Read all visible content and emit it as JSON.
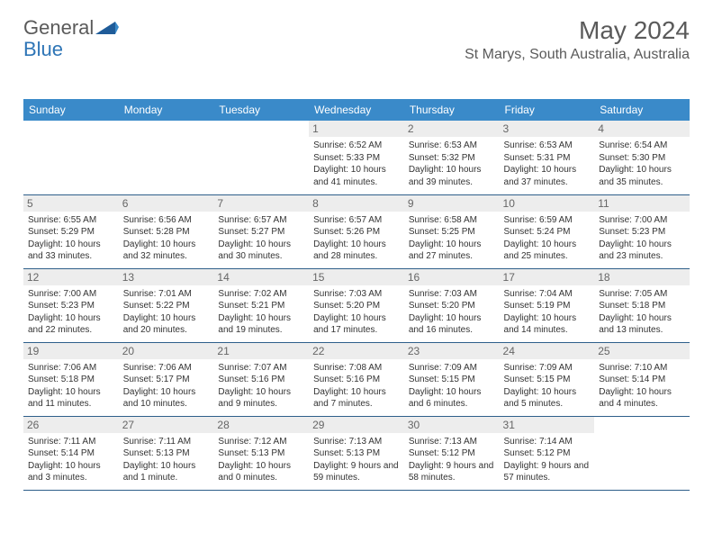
{
  "logo": {
    "text_main": "General",
    "text_blue": "Blue"
  },
  "title": "May 2024",
  "location": "St Marys, South Australia, Australia",
  "colors": {
    "header_bg": "#3a8ac9",
    "header_text": "#ffffff",
    "border": "#2e5f8a",
    "daynum_bg": "#ededed",
    "daynum_text": "#666666",
    "body_text": "#333333",
    "title_text": "#5a5a5a",
    "logo_blue": "#2e75b6"
  },
  "typography": {
    "month_title_fontsize": 28,
    "location_fontsize": 16,
    "weekday_fontsize": 12,
    "daynum_fontsize": 12,
    "cell_fontsize": 10
  },
  "weekdays": [
    "Sunday",
    "Monday",
    "Tuesday",
    "Wednesday",
    "Thursday",
    "Friday",
    "Saturday"
  ],
  "weeks": [
    [
      null,
      null,
      null,
      {
        "n": "1",
        "sr": "6:52 AM",
        "ss": "5:33 PM",
        "dl": "10 hours and 41 minutes."
      },
      {
        "n": "2",
        "sr": "6:53 AM",
        "ss": "5:32 PM",
        "dl": "10 hours and 39 minutes."
      },
      {
        "n": "3",
        "sr": "6:53 AM",
        "ss": "5:31 PM",
        "dl": "10 hours and 37 minutes."
      },
      {
        "n": "4",
        "sr": "6:54 AM",
        "ss": "5:30 PM",
        "dl": "10 hours and 35 minutes."
      }
    ],
    [
      {
        "n": "5",
        "sr": "6:55 AM",
        "ss": "5:29 PM",
        "dl": "10 hours and 33 minutes."
      },
      {
        "n": "6",
        "sr": "6:56 AM",
        "ss": "5:28 PM",
        "dl": "10 hours and 32 minutes."
      },
      {
        "n": "7",
        "sr": "6:57 AM",
        "ss": "5:27 PM",
        "dl": "10 hours and 30 minutes."
      },
      {
        "n": "8",
        "sr": "6:57 AM",
        "ss": "5:26 PM",
        "dl": "10 hours and 28 minutes."
      },
      {
        "n": "9",
        "sr": "6:58 AM",
        "ss": "5:25 PM",
        "dl": "10 hours and 27 minutes."
      },
      {
        "n": "10",
        "sr": "6:59 AM",
        "ss": "5:24 PM",
        "dl": "10 hours and 25 minutes."
      },
      {
        "n": "11",
        "sr": "7:00 AM",
        "ss": "5:23 PM",
        "dl": "10 hours and 23 minutes."
      }
    ],
    [
      {
        "n": "12",
        "sr": "7:00 AM",
        "ss": "5:23 PM",
        "dl": "10 hours and 22 minutes."
      },
      {
        "n": "13",
        "sr": "7:01 AM",
        "ss": "5:22 PM",
        "dl": "10 hours and 20 minutes."
      },
      {
        "n": "14",
        "sr": "7:02 AM",
        "ss": "5:21 PM",
        "dl": "10 hours and 19 minutes."
      },
      {
        "n": "15",
        "sr": "7:03 AM",
        "ss": "5:20 PM",
        "dl": "10 hours and 17 minutes."
      },
      {
        "n": "16",
        "sr": "7:03 AM",
        "ss": "5:20 PM",
        "dl": "10 hours and 16 minutes."
      },
      {
        "n": "17",
        "sr": "7:04 AM",
        "ss": "5:19 PM",
        "dl": "10 hours and 14 minutes."
      },
      {
        "n": "18",
        "sr": "7:05 AM",
        "ss": "5:18 PM",
        "dl": "10 hours and 13 minutes."
      }
    ],
    [
      {
        "n": "19",
        "sr": "7:06 AM",
        "ss": "5:18 PM",
        "dl": "10 hours and 11 minutes."
      },
      {
        "n": "20",
        "sr": "7:06 AM",
        "ss": "5:17 PM",
        "dl": "10 hours and 10 minutes."
      },
      {
        "n": "21",
        "sr": "7:07 AM",
        "ss": "5:16 PM",
        "dl": "10 hours and 9 minutes."
      },
      {
        "n": "22",
        "sr": "7:08 AM",
        "ss": "5:16 PM",
        "dl": "10 hours and 7 minutes."
      },
      {
        "n": "23",
        "sr": "7:09 AM",
        "ss": "5:15 PM",
        "dl": "10 hours and 6 minutes."
      },
      {
        "n": "24",
        "sr": "7:09 AM",
        "ss": "5:15 PM",
        "dl": "10 hours and 5 minutes."
      },
      {
        "n": "25",
        "sr": "7:10 AM",
        "ss": "5:14 PM",
        "dl": "10 hours and 4 minutes."
      }
    ],
    [
      {
        "n": "26",
        "sr": "7:11 AM",
        "ss": "5:14 PM",
        "dl": "10 hours and 3 minutes."
      },
      {
        "n": "27",
        "sr": "7:11 AM",
        "ss": "5:13 PM",
        "dl": "10 hours and 1 minute."
      },
      {
        "n": "28",
        "sr": "7:12 AM",
        "ss": "5:13 PM",
        "dl": "10 hours and 0 minutes."
      },
      {
        "n": "29",
        "sr": "7:13 AM",
        "ss": "5:13 PM",
        "dl": "9 hours and 59 minutes."
      },
      {
        "n": "30",
        "sr": "7:13 AM",
        "ss": "5:12 PM",
        "dl": "9 hours and 58 minutes."
      },
      {
        "n": "31",
        "sr": "7:14 AM",
        "ss": "5:12 PM",
        "dl": "9 hours and 57 minutes."
      },
      null
    ]
  ],
  "labels": {
    "sunrise": "Sunrise:",
    "sunset": "Sunset:",
    "daylight": "Daylight:"
  }
}
